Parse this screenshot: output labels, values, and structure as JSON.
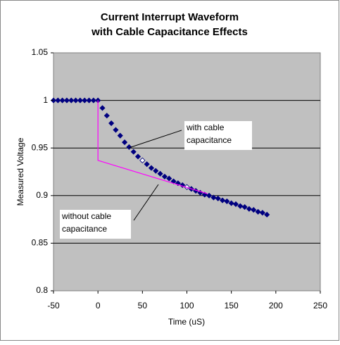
{
  "chart_data": {
    "type": "scatter",
    "title": [
      "Current Interrupt Waveform",
      "with Cable Capacitance Effects"
    ],
    "x_label": "Time (uS)",
    "y_label": "Measured Voltage",
    "xlim": [
      -50,
      250
    ],
    "xticks": [
      -50,
      0,
      50,
      100,
      150,
      200,
      250
    ],
    "ylim": [
      0.8,
      1.05
    ],
    "yticks": [
      0.8,
      0.85,
      0.9,
      0.95,
      1,
      1.05
    ],
    "grid": true,
    "series": [
      {
        "color": "#000080",
        "marker": "diamond",
        "line": false,
        "x": [
          -50,
          -45,
          -40,
          -35,
          -30,
          -25,
          -20,
          -15,
          -10,
          -5,
          0,
          5,
          10,
          15,
          20,
          25,
          30,
          35,
          40,
          45,
          50,
          55,
          60,
          65,
          70,
          75,
          80,
          85,
          90,
          95,
          100,
          105,
          110,
          115,
          120,
          125,
          130,
          135,
          140,
          145,
          150,
          155,
          160,
          165,
          170,
          175,
          180,
          185,
          190
        ],
        "values": [
          1,
          1,
          1,
          1,
          1,
          1,
          1,
          1,
          1,
          1,
          1,
          0.992,
          0.984,
          0.976,
          0.969,
          0.963,
          0.956,
          0.951,
          0.946,
          0.941,
          0.937,
          0.933,
          0.929,
          0.926,
          0.923,
          0.92,
          0.918,
          0.915,
          0.913,
          0.911,
          0.909,
          0.907,
          0.905,
          0.903,
          0.901,
          0.9,
          0.898,
          0.897,
          0.895,
          0.894,
          0.892,
          0.891,
          0.889,
          0.888,
          0.886,
          0.885,
          0.883,
          0.882,
          0.88
        ]
      },
      {
        "color": "#ffffff",
        "marker": "diamond",
        "line": false,
        "x": [
          50,
          100
        ],
        "values": [
          0.937,
          0.909
        ]
      },
      {
        "color": "#ff00ff",
        "marker": "none",
        "line": true,
        "x": [
          0,
          0,
          123
        ],
        "values": [
          1,
          0.937,
          0.902
        ]
      }
    ],
    "annotations": [
      {
        "lines": [
          "with cable",
          "capacitance"
        ]
      },
      {
        "lines": [
          "without cable",
          "capacitance"
        ]
      }
    ]
  }
}
